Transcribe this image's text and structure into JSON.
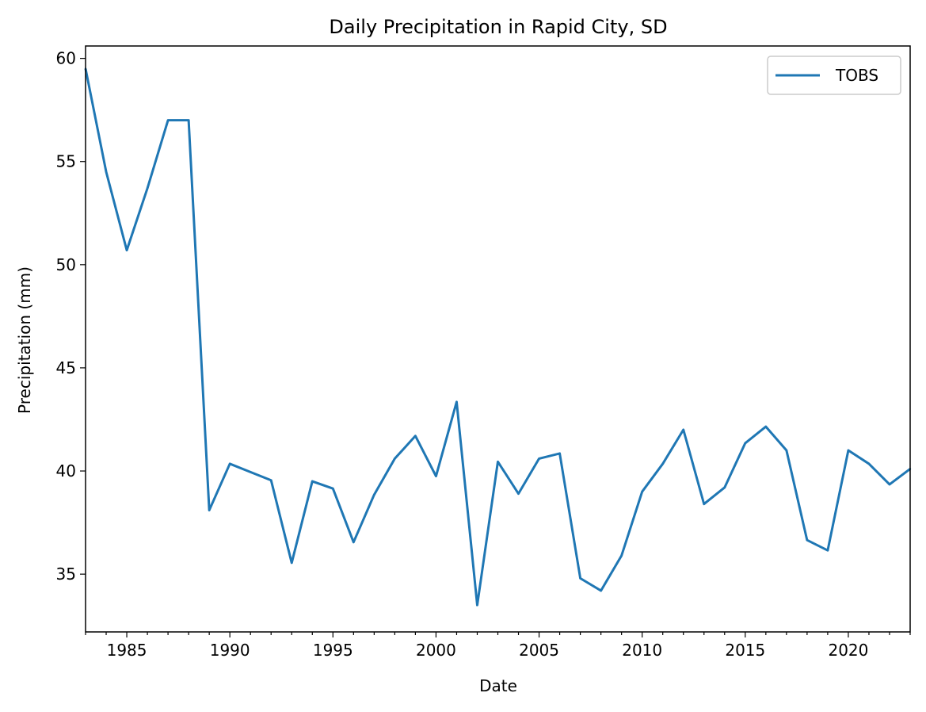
{
  "chart_data": {
    "type": "line",
    "title": "Daily Precipitation in Rapid City, SD",
    "xlabel": "Date",
    "ylabel": "Precipitation (mm)",
    "xlim": [
      1983,
      2023
    ],
    "ylim": [
      32.2,
      60.6
    ],
    "xticks": [
      1985,
      1990,
      1995,
      2000,
      2005,
      2010,
      2015,
      2020
    ],
    "yticks": [
      35,
      40,
      45,
      50,
      55,
      60
    ],
    "grid": false,
    "legend_position": "top-right",
    "line_color": "#1f77b4",
    "series": [
      {
        "name": "TOBS",
        "x": [
          1983,
          1984,
          1985,
          1986,
          1987,
          1988,
          1989,
          1990,
          1991,
          1992,
          1993,
          1994,
          1995,
          1996,
          1997,
          1998,
          1999,
          2000,
          2001,
          2002,
          2003,
          2004,
          2005,
          2006,
          2007,
          2008,
          2009,
          2010,
          2011,
          2012,
          2013,
          2014,
          2015,
          2016,
          2017,
          2018,
          2019,
          2020,
          2021,
          2022,
          2023
        ],
        "values": [
          59.5,
          54.5,
          50.7,
          53.7,
          57.0,
          57.0,
          38.1,
          40.35,
          39.95,
          39.55,
          35.55,
          39.5,
          39.15,
          36.55,
          38.85,
          40.6,
          41.7,
          39.75,
          43.35,
          33.5,
          40.45,
          38.9,
          40.6,
          40.85,
          34.8,
          34.2,
          35.9,
          39.0,
          40.35,
          42.0,
          38.4,
          39.2,
          41.35,
          42.15,
          41.0,
          36.65,
          36.15,
          41.0,
          40.35,
          39.35,
          40.1
        ]
      }
    ]
  }
}
